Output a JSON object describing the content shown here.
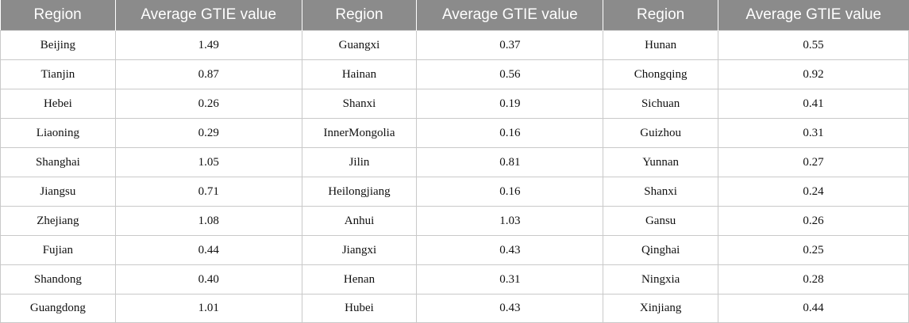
{
  "table": {
    "headers": [
      "Region",
      "Average GTIE value",
      "Region",
      "Average GTIE value",
      "Region",
      "Average GTIE value"
    ],
    "rows": [
      [
        "Beijing",
        "1.49",
        "Guangxi",
        "0.37",
        "Hunan",
        "0.55"
      ],
      [
        "Tianjin",
        "0.87",
        "Hainan",
        "0.56",
        "Chongqing",
        "0.92"
      ],
      [
        "Hebei",
        "0.26",
        "Shanxi",
        "0.19",
        "Sichuan",
        "0.41"
      ],
      [
        "Liaoning",
        "0.29",
        "InnerMongolia",
        "0.16",
        "Guizhou",
        "0.31"
      ],
      [
        "Shanghai",
        "1.05",
        "Jilin",
        "0.81",
        "Yunnan",
        "0.27"
      ],
      [
        "Jiangsu",
        "0.71",
        "Heilongjiang",
        "0.16",
        "Shanxi",
        "0.24"
      ],
      [
        "Zhejiang",
        "1.08",
        "Anhui",
        "1.03",
        "Gansu",
        "0.26"
      ],
      [
        "Fujian",
        "0.44",
        "Jiangxi",
        "0.43",
        "Qinghai",
        "0.25"
      ],
      [
        "Shandong",
        "0.40",
        "Henan",
        "0.31",
        "Ningxia",
        "0.28"
      ],
      [
        "Guangdong",
        "1.01",
        "Hubei",
        "0.43",
        "Xinjiang",
        "0.44"
      ]
    ]
  }
}
